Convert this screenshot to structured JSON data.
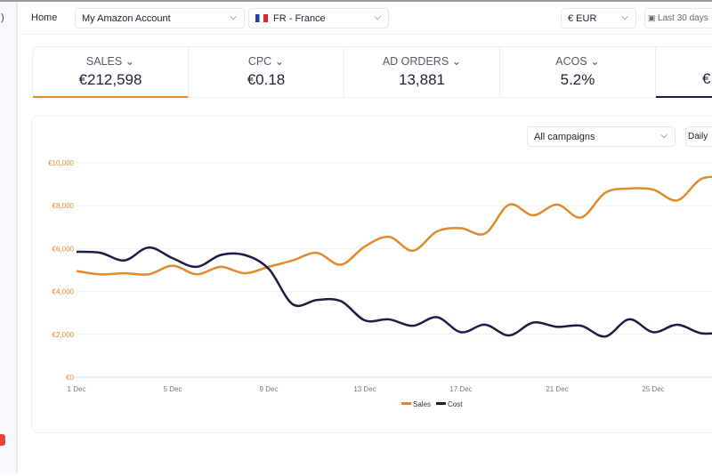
{
  "sidebar": {
    "glyph": ")",
    "badge_color": "#e5483a"
  },
  "topbar": {
    "home": "Home",
    "account": "My Amazon Account",
    "marketplace": "FR - France",
    "currency": "€ EUR",
    "date_range": "Last 30 days"
  },
  "kpis": [
    {
      "label": "SALES",
      "value": "€212,598"
    },
    {
      "label": "CPC",
      "value": "€0.18"
    },
    {
      "label": "AD ORDERS",
      "value": "13,881"
    },
    {
      "label": "ACOS",
      "value": "5.2%"
    },
    {
      "label": "",
      "value": "€"
    }
  ],
  "chart_controls": {
    "campaign": "All campaigns",
    "interval": "Daily"
  },
  "chart_data": {
    "type": "line",
    "x": [
      "1 Dec",
      "2 Dec",
      "3 Dec",
      "4 Dec",
      "5 Dec",
      "6 Dec",
      "7 Dec",
      "8 Dec",
      "9 Dec",
      "10 Dec",
      "11 Dec",
      "12 Dec",
      "13 Dec",
      "14 Dec",
      "15 Dec",
      "16 Dec",
      "17 Dec",
      "18 Dec",
      "19 Dec",
      "20 Dec",
      "21 Dec",
      "22 Dec",
      "23 Dec",
      "24 Dec",
      "25 Dec",
      "26 Dec",
      "27 Dec",
      "28 Dec"
    ],
    "xticks": [
      "1 Dec",
      "5 Dec",
      "9 Dec",
      "13 Dec",
      "17 Dec",
      "21 Dec",
      "25 Dec"
    ],
    "yticks": [
      "€0",
      "€2,000",
      "€4,000",
      "€6,000",
      "€8,000",
      "€10,000"
    ],
    "ylim": [
      0,
      10000
    ],
    "grid": true,
    "legend_position": "bottom",
    "series": [
      {
        "name": "Sales",
        "color": "#e08a2e",
        "values": [
          4950,
          4800,
          4850,
          4800,
          5200,
          4800,
          5150,
          4850,
          5150,
          5450,
          5800,
          5250,
          6100,
          6550,
          5900,
          6800,
          6950,
          6700,
          8050,
          7550,
          8050,
          7450,
          8600,
          8800,
          8750,
          8250,
          9250,
          9300
        ]
      },
      {
        "name": "Cost",
        "color": "#1c1c45",
        "values": [
          5850,
          5800,
          5450,
          6050,
          5550,
          5150,
          5700,
          5700,
          5050,
          3400,
          3600,
          3550,
          2650,
          2700,
          2400,
          2800,
          2100,
          2450,
          1950,
          2550,
          2350,
          2400,
          1900,
          2700,
          2100,
          2450,
          2050,
          2100
        ]
      }
    ]
  }
}
